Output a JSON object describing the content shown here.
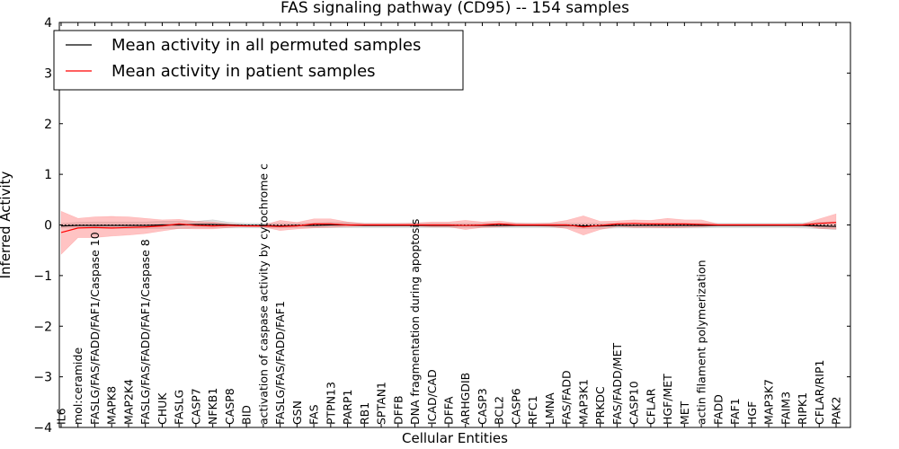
{
  "chart_data": {
    "type": "line",
    "title": "FAS signaling pathway (CD95) -- 154 samples",
    "xlabel": "Cellular Entities",
    "ylabel": "Inferred Activity",
    "ylim": [
      -4,
      4
    ],
    "yticks": [
      -4,
      -3,
      -2,
      -1,
      0,
      1,
      2,
      3,
      4
    ],
    "ytick_labels": [
      "−4",
      "−3",
      "−2",
      "−1",
      "0",
      "1",
      "2",
      "3",
      "4"
    ],
    "categories": [
      "IL6",
      "mol:ceramide",
      "FASLG/FAS/FADD/FAF1/Caspase 10",
      "MAPK8",
      "MAP2K4",
      "FASLG/FAS/FADD/FAF1/Caspase 8",
      "CHUK",
      "FASLG",
      "CASP7",
      "NFKB1",
      "CASP8",
      "BID",
      "activation of caspase activity by cytochrome c",
      "FASLG/FAS/FADD/FAF1",
      "GSN",
      "FAS",
      "PTPN13",
      "PARP1",
      "RB1",
      "SPTAN1",
      "DFFB",
      "DNA fragmentation during apoptosis",
      "ICAD/CAD",
      "DFFA",
      "ARHGDIB",
      "CASP3",
      "BCL2",
      "CASP6",
      "RFC1",
      "LMNA",
      "FAS/FADD",
      "MAP3K1",
      "PRKDC",
      "FAS/FADD/MET",
      "CASP10",
      "CFLAR",
      "HGF/MET",
      "MET",
      "actin filament polymerization",
      "FADD",
      "FAF1",
      "HGF",
      "MAP3K7",
      "FAIM3",
      "RIPK1",
      "CFLAR/RIP1",
      "PAK2"
    ],
    "series": [
      {
        "name": "Mean activity in all permuted samples",
        "color": "#000000",
        "values": [
          -0.02,
          -0.01,
          -0.01,
          -0.01,
          -0.01,
          -0.01,
          0.0,
          0.0,
          0.01,
          0.01,
          0.0,
          -0.01,
          -0.01,
          -0.02,
          -0.01,
          -0.01,
          0.0,
          0.0,
          -0.01,
          -0.01,
          -0.01,
          -0.01,
          -0.01,
          -0.01,
          -0.01,
          -0.01,
          -0.01,
          -0.01,
          -0.01,
          -0.01,
          -0.01,
          -0.02,
          -0.02,
          -0.01,
          -0.01,
          -0.01,
          -0.01,
          -0.01,
          -0.01,
          -0.01,
          -0.01,
          -0.01,
          -0.01,
          -0.01,
          -0.01,
          -0.02,
          -0.03
        ],
        "band_low": [
          -0.06,
          -0.06,
          -0.07,
          -0.07,
          -0.07,
          -0.07,
          -0.07,
          -0.07,
          -0.06,
          -0.06,
          -0.06,
          -0.06,
          -0.06,
          -0.06,
          -0.05,
          -0.05,
          -0.05,
          -0.05,
          -0.05,
          -0.05,
          -0.05,
          -0.05,
          -0.05,
          -0.05,
          -0.05,
          -0.05,
          -0.05,
          -0.05,
          -0.05,
          -0.05,
          -0.06,
          -0.07,
          -0.07,
          -0.06,
          -0.06,
          -0.06,
          -0.06,
          -0.06,
          -0.06,
          -0.05,
          -0.05,
          -0.05,
          -0.05,
          -0.05,
          -0.06,
          -0.07,
          -0.09
        ],
        "band_high": [
          0.03,
          0.05,
          0.06,
          0.06,
          0.06,
          0.06,
          0.07,
          0.07,
          0.07,
          0.1,
          0.05,
          0.03,
          0.03,
          0.03,
          0.03,
          0.04,
          0.05,
          0.05,
          0.03,
          0.03,
          0.03,
          0.03,
          0.03,
          0.03,
          0.03,
          0.03,
          0.03,
          0.03,
          0.03,
          0.03,
          0.03,
          0.03,
          0.03,
          0.03,
          0.03,
          0.03,
          0.03,
          0.03,
          0.03,
          0.03,
          0.03,
          0.03,
          0.03,
          0.03,
          0.04,
          0.05,
          0.06
        ]
      },
      {
        "name": "Mean activity in patient samples",
        "color": "#ff0000",
        "values": [
          -0.15,
          -0.06,
          -0.05,
          -0.06,
          -0.05,
          -0.04,
          -0.02,
          0.02,
          -0.01,
          -0.02,
          -0.01,
          -0.02,
          -0.02,
          -0.03,
          -0.02,
          0.02,
          0.02,
          0.0,
          0.0,
          0.0,
          0.0,
          0.0,
          0.0,
          0.0,
          -0.01,
          0.0,
          0.02,
          0.0,
          0.0,
          0.0,
          0.0,
          -0.04,
          -0.01,
          0.02,
          0.03,
          0.02,
          0.02,
          0.02,
          0.01,
          0.0,
          0.0,
          0.0,
          0.0,
          0.0,
          0.0,
          0.03,
          0.05
        ],
        "band_low": [
          -0.58,
          -0.25,
          -0.25,
          -0.22,
          -0.2,
          -0.17,
          -0.12,
          -0.07,
          -0.08,
          -0.08,
          -0.05,
          -0.03,
          -0.04,
          -0.11,
          -0.08,
          -0.06,
          -0.05,
          -0.03,
          -0.02,
          -0.02,
          -0.02,
          -0.02,
          -0.04,
          -0.04,
          -0.09,
          -0.05,
          -0.04,
          -0.02,
          -0.02,
          -0.03,
          -0.07,
          -0.2,
          -0.09,
          -0.03,
          -0.05,
          -0.05,
          -0.06,
          -0.05,
          -0.04,
          -0.01,
          -0.01,
          -0.01,
          -0.01,
          -0.01,
          -0.01,
          -0.07,
          -0.08
        ],
        "band_high": [
          0.27,
          0.13,
          0.16,
          0.17,
          0.16,
          0.13,
          0.1,
          0.11,
          0.07,
          0.06,
          0.02,
          0.0,
          0.0,
          0.09,
          0.05,
          0.12,
          0.12,
          0.06,
          0.03,
          0.03,
          0.03,
          0.04,
          0.06,
          0.06,
          0.09,
          0.06,
          0.08,
          0.04,
          0.03,
          0.04,
          0.09,
          0.18,
          0.07,
          0.08,
          0.1,
          0.09,
          0.13,
          0.1,
          0.1,
          0.02,
          0.02,
          0.02,
          0.02,
          0.02,
          0.02,
          0.12,
          0.22
        ]
      }
    ],
    "legend": {
      "position": "top-left",
      "entries": [
        {
          "label": "Mean activity in all permuted samples",
          "color": "#000000"
        },
        {
          "label": "Mean activity in patient samples",
          "color": "#ff0000"
        }
      ]
    }
  }
}
